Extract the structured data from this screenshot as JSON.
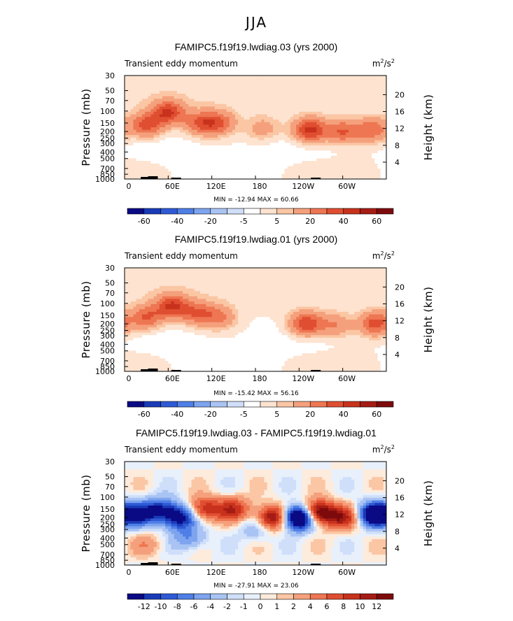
{
  "figure_title": "JJA",
  "chart_data": [
    {
      "type": "heatmap",
      "title": "FAMIPC5.f19f19.lwdiag.03 (yrs 2000)",
      "subtitle_left": "Transient eddy momentum",
      "units": "m²/s²",
      "units_base": "m",
      "units_exp1": "2",
      "units_mid": "/s",
      "units_exp2": "2",
      "ylabel": "Pressure (mb)",
      "ylabel_right": "Height (km)",
      "pressure_ticks": [
        "30",
        "50",
        "70",
        "100",
        "150",
        "200",
        "250",
        "300",
        "400",
        "500",
        "700",
        "850",
        "1000"
      ],
      "pressure_values": [
        30,
        50,
        70,
        100,
        150,
        200,
        250,
        300,
        400,
        500,
        700,
        850,
        1000
      ],
      "height_ticks": [
        "20",
        "16",
        "12",
        "8",
        "4"
      ],
      "height_values": [
        20,
        16,
        12,
        8,
        4
      ],
      "x_ticks": [
        "0",
        "60E",
        "120E",
        "180",
        "120W",
        "60W"
      ],
      "x_values": [
        0,
        60,
        120,
        180,
        240,
        300
      ],
      "xlim": [
        0,
        360
      ],
      "min_max_text": "MIN = -12.94   MAX =  60.66",
      "min": -12.94,
      "max": 60.66,
      "colorbar_labels": [
        "-60",
        "-40",
        "-20",
        "-5",
        "5",
        "20",
        "40",
        "60"
      ],
      "colorbar_levels": [
        -70,
        -60,
        -50,
        -40,
        -30,
        -20,
        -10,
        -5,
        0,
        5,
        10,
        20,
        30,
        40,
        50,
        60,
        70
      ],
      "colors": [
        "#0a0a85",
        "#1a3bb8",
        "#2f5ad6",
        "#4f7fe6",
        "#7ea4ef",
        "#a9c4f4",
        "#cfdffa",
        "#ffffff",
        "#fde3d0",
        "#fbc6a4",
        "#f5a07c",
        "#ee7652",
        "#e04e31",
        "#c8321d",
        "#a51c15",
        "#7d0b0b"
      ],
      "features": [
        {
          "lon": 30,
          "p": 160,
          "amp": 35
        },
        {
          "lon": 60,
          "p": 105,
          "amp": 40
        },
        {
          "lon": 105,
          "p": 150,
          "amp": 30
        },
        {
          "lon": 130,
          "p": 150,
          "amp": 28
        },
        {
          "lon": 190,
          "p": 180,
          "amp": 15
        },
        {
          "lon": 255,
          "p": 190,
          "amp": 45
        },
        {
          "lon": 300,
          "p": 200,
          "amp": 30
        },
        {
          "lon": 340,
          "p": 190,
          "amp": 28
        }
      ]
    },
    {
      "type": "heatmap",
      "title": "FAMIPC5.f19f19.lwdiag.01 (yrs 2000)",
      "subtitle_left": "Transient eddy momentum",
      "units": "m²/s²",
      "units_base": "m",
      "units_exp1": "2",
      "units_mid": "/s",
      "units_exp2": "2",
      "ylabel": "Pressure (mb)",
      "ylabel_right": "Height (km)",
      "pressure_ticks": [
        "30",
        "50",
        "70",
        "100",
        "150",
        "200",
        "250",
        "300",
        "400",
        "500",
        "700",
        "850",
        "1000"
      ],
      "pressure_values": [
        30,
        50,
        70,
        100,
        150,
        200,
        250,
        300,
        400,
        500,
        700,
        850,
        1000
      ],
      "height_ticks": [
        "20",
        "16",
        "12",
        "8",
        "4"
      ],
      "height_values": [
        20,
        16,
        12,
        8,
        4
      ],
      "x_ticks": [
        "0",
        "60E",
        "120E",
        "180",
        "120W",
        "60W"
      ],
      "x_values": [
        0,
        60,
        120,
        180,
        240,
        300
      ],
      "xlim": [
        0,
        360
      ],
      "min_max_text": "MIN = -15.42   MAX =  56.16",
      "min": -15.42,
      "max": 56.16,
      "colorbar_labels": [
        "-60",
        "-40",
        "-20",
        "-5",
        "5",
        "20",
        "40",
        "60"
      ],
      "colorbar_levels": [
        -70,
        -60,
        -50,
        -40,
        -30,
        -20,
        -10,
        -5,
        0,
        5,
        10,
        20,
        30,
        40,
        50,
        60,
        70
      ],
      "colors": [
        "#0a0a85",
        "#1a3bb8",
        "#2f5ad6",
        "#4f7fe6",
        "#7ea4ef",
        "#a9c4f4",
        "#cfdffa",
        "#ffffff",
        "#fde3d0",
        "#fbc6a4",
        "#f5a07c",
        "#ee7652",
        "#e04e31",
        "#c8321d",
        "#a51c15",
        "#7d0b0b"
      ],
      "features": [
        {
          "lon": 30,
          "p": 160,
          "amp": 30
        },
        {
          "lon": 65,
          "p": 110,
          "amp": 40
        },
        {
          "lon": 100,
          "p": 140,
          "amp": 28
        },
        {
          "lon": 130,
          "p": 160,
          "amp": 22
        },
        {
          "lon": 250,
          "p": 200,
          "amp": 40
        },
        {
          "lon": 290,
          "p": 210,
          "amp": 20
        },
        {
          "lon": 345,
          "p": 200,
          "amp": 35
        }
      ]
    },
    {
      "type": "heatmap",
      "title": "FAMIPC5.f19f19.lwdiag.03 - FAMIPC5.f19f19.lwdiag.01",
      "subtitle_left": "Transient eddy momentum",
      "units": "m²/s²",
      "units_base": "m",
      "units_exp1": "2",
      "units_mid": "/s",
      "units_exp2": "2",
      "ylabel": "Pressure (mb)",
      "ylabel_right": "Height (km)",
      "pressure_ticks": [
        "30",
        "50",
        "70",
        "100",
        "150",
        "200",
        "250",
        "300",
        "400",
        "500",
        "700",
        "850",
        "1000"
      ],
      "pressure_values": [
        30,
        50,
        70,
        100,
        150,
        200,
        250,
        300,
        400,
        500,
        700,
        850,
        1000
      ],
      "height_ticks": [
        "20",
        "16",
        "12",
        "8",
        "4"
      ],
      "height_values": [
        20,
        16,
        12,
        8,
        4
      ],
      "x_ticks": [
        "0",
        "60E",
        "120E",
        "180",
        "120W",
        "60W"
      ],
      "x_values": [
        0,
        60,
        120,
        180,
        240,
        300
      ],
      "xlim": [
        0,
        360
      ],
      "min_max_text": "MIN = -27.91   MAX =  23.06",
      "min": -27.91,
      "max": 23.06,
      "colorbar_labels": [
        "-12",
        "-10",
        "-8",
        "-6",
        "-4",
        "-2",
        "-1",
        "0",
        "1",
        "2",
        "4",
        "6",
        "8",
        "10",
        "12"
      ],
      "colorbar_levels": [
        -14,
        -12,
        -10,
        -8,
        -6,
        -4,
        -2,
        -1,
        0,
        1,
        2,
        4,
        6,
        8,
        10,
        12,
        14
      ],
      "colors": [
        "#0a0a85",
        "#1a3bb8",
        "#2f5ad6",
        "#4f7fe6",
        "#7ea4ef",
        "#a9c4f4",
        "#cfdffa",
        "#e8f0fc",
        "#fdebdc",
        "#fbc6a4",
        "#f5a07c",
        "#ee7652",
        "#e04e31",
        "#c8321d",
        "#a51c15",
        "#7d0b0b"
      ],
      "features": [
        {
          "lon": 20,
          "p": 180,
          "amp": -12
        },
        {
          "lon": 50,
          "p": 150,
          "amp": -10
        },
        {
          "lon": 75,
          "p": 200,
          "amp": -14
        },
        {
          "lon": 110,
          "p": 150,
          "amp": 10
        },
        {
          "lon": 150,
          "p": 150,
          "amp": 9
        },
        {
          "lon": 205,
          "p": 200,
          "amp": 14
        },
        {
          "lon": 240,
          "p": 200,
          "amp": -25
        },
        {
          "lon": 265,
          "p": 170,
          "amp": 18
        },
        {
          "lon": 300,
          "p": 200,
          "amp": 10
        },
        {
          "lon": 345,
          "p": 180,
          "amp": -20
        },
        {
          "lon": 90,
          "p": 400,
          "amp": -6
        },
        {
          "lon": 30,
          "p": 500,
          "amp": 3
        },
        {
          "lon": 180,
          "p": 300,
          "amp": -4
        }
      ]
    }
  ]
}
